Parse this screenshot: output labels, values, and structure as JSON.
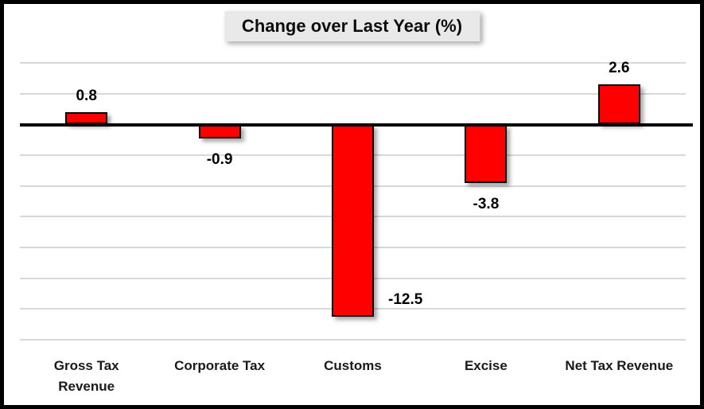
{
  "chart_data": {
    "type": "bar",
    "title": "Change over Last Year (%)",
    "categories": [
      "Gross Tax Revenue",
      "Corporate Tax",
      "Customs",
      "Excise",
      "Net Tax Revenue"
    ],
    "values": [
      0.8,
      -0.9,
      -12.5,
      -3.8,
      2.6
    ],
    "data_labels": [
      "0.8",
      "-0.9",
      "-12.5",
      "-3.8",
      "2.6"
    ],
    "label_positions": [
      "above",
      "below",
      "right",
      "below",
      "above"
    ],
    "xlabel": "",
    "ylabel": "",
    "ylim": [
      -14,
      4
    ],
    "grid_step": 2,
    "grid": true,
    "legend": false,
    "tick_labels_shown": false,
    "colors": {
      "bar_fill": "#ff0000",
      "bar_border": "#000000",
      "zero_line": "#000000",
      "gridline": "#d8d8d8",
      "title_box_bg": "#e9e9e9",
      "text": "#000000",
      "background": "#ffffff",
      "frame_border": "#000000"
    }
  }
}
